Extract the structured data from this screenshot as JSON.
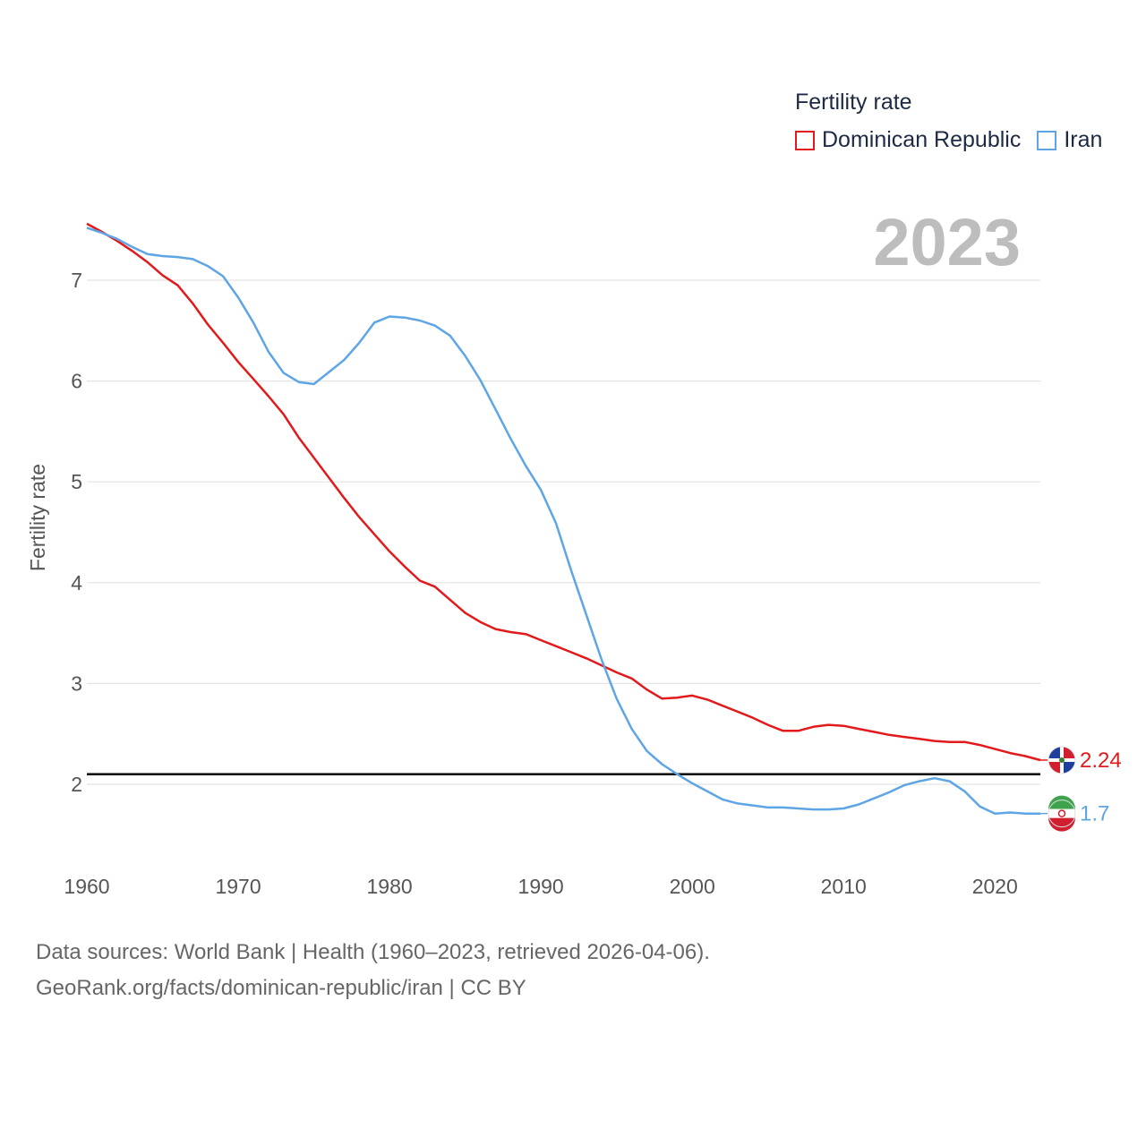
{
  "legend": {
    "title": "Fertility rate",
    "items": [
      {
        "label": "Dominican Republic",
        "color": "#e31a1c"
      },
      {
        "label": "Iran",
        "color": "#5ea5e6"
      }
    ]
  },
  "current_year": "2023",
  "footer": {
    "line1": "Data sources: World Bank | Health (1960–2023, retrieved 2026-04-06).",
    "line2": "GeoRank.org/facts/dominican-republic/iran | CC BY"
  },
  "chart_data": {
    "type": "line",
    "ylabel": "Fertility rate",
    "xlabel": "",
    "x": [
      1960,
      1961,
      1962,
      1963,
      1964,
      1965,
      1966,
      1967,
      1968,
      1969,
      1970,
      1971,
      1972,
      1973,
      1974,
      1975,
      1976,
      1977,
      1978,
      1979,
      1980,
      1981,
      1982,
      1983,
      1984,
      1985,
      1986,
      1987,
      1988,
      1989,
      1990,
      1991,
      1992,
      1993,
      1994,
      1995,
      1996,
      1997,
      1998,
      1999,
      2000,
      2001,
      2002,
      2003,
      2004,
      2005,
      2006,
      2007,
      2008,
      2009,
      2010,
      2011,
      2012,
      2013,
      2014,
      2015,
      2016,
      2017,
      2018,
      2019,
      2020,
      2021,
      2022,
      2023
    ],
    "xticks": [
      1960,
      1970,
      1980,
      1990,
      2000,
      2010,
      2020
    ],
    "yticks": [
      2,
      3,
      4,
      5,
      6,
      7
    ],
    "xlim": [
      1960,
      2023
    ],
    "ylim": [
      1.25,
      7.6
    ],
    "reference_line": 2.1,
    "series": [
      {
        "name": "Dominican Republic",
        "color": "#e31a1c",
        "end_label": "2.24",
        "values": [
          7.56,
          7.48,
          7.39,
          7.29,
          7.18,
          7.05,
          6.95,
          6.77,
          6.56,
          6.38,
          6.19,
          6.02,
          5.85,
          5.67,
          5.44,
          5.24,
          5.04,
          4.84,
          4.65,
          4.48,
          4.31,
          4.16,
          4.02,
          3.96,
          3.83,
          3.7,
          3.61,
          3.54,
          3.51,
          3.49,
          3.43,
          3.37,
          3.31,
          3.25,
          3.18,
          3.11,
          3.05,
          2.94,
          2.85,
          2.86,
          2.88,
          2.84,
          2.78,
          2.72,
          2.66,
          2.59,
          2.53,
          2.53,
          2.57,
          2.59,
          2.58,
          2.55,
          2.52,
          2.49,
          2.47,
          2.45,
          2.43,
          2.42,
          2.42,
          2.39,
          2.35,
          2.31,
          2.28,
          2.24
        ]
      },
      {
        "name": "Iran",
        "color": "#5ea5e6",
        "end_label": "1.7",
        "values": [
          7.52,
          7.47,
          7.41,
          7.33,
          7.26,
          7.24,
          7.23,
          7.21,
          7.14,
          7.04,
          6.83,
          6.58,
          6.29,
          6.08,
          5.99,
          5.97,
          6.09,
          6.21,
          6.38,
          6.58,
          6.64,
          6.63,
          6.6,
          6.55,
          6.45,
          6.25,
          6.01,
          5.72,
          5.43,
          5.16,
          4.92,
          4.59,
          4.12,
          3.68,
          3.24,
          2.85,
          2.55,
          2.33,
          2.2,
          2.1,
          2.01,
          1.93,
          1.85,
          1.81,
          1.79,
          1.77,
          1.77,
          1.76,
          1.75,
          1.75,
          1.76,
          1.8,
          1.86,
          1.92,
          1.99,
          2.03,
          2.06,
          2.03,
          1.93,
          1.78,
          1.71,
          1.72,
          1.71,
          1.71
        ]
      }
    ]
  }
}
